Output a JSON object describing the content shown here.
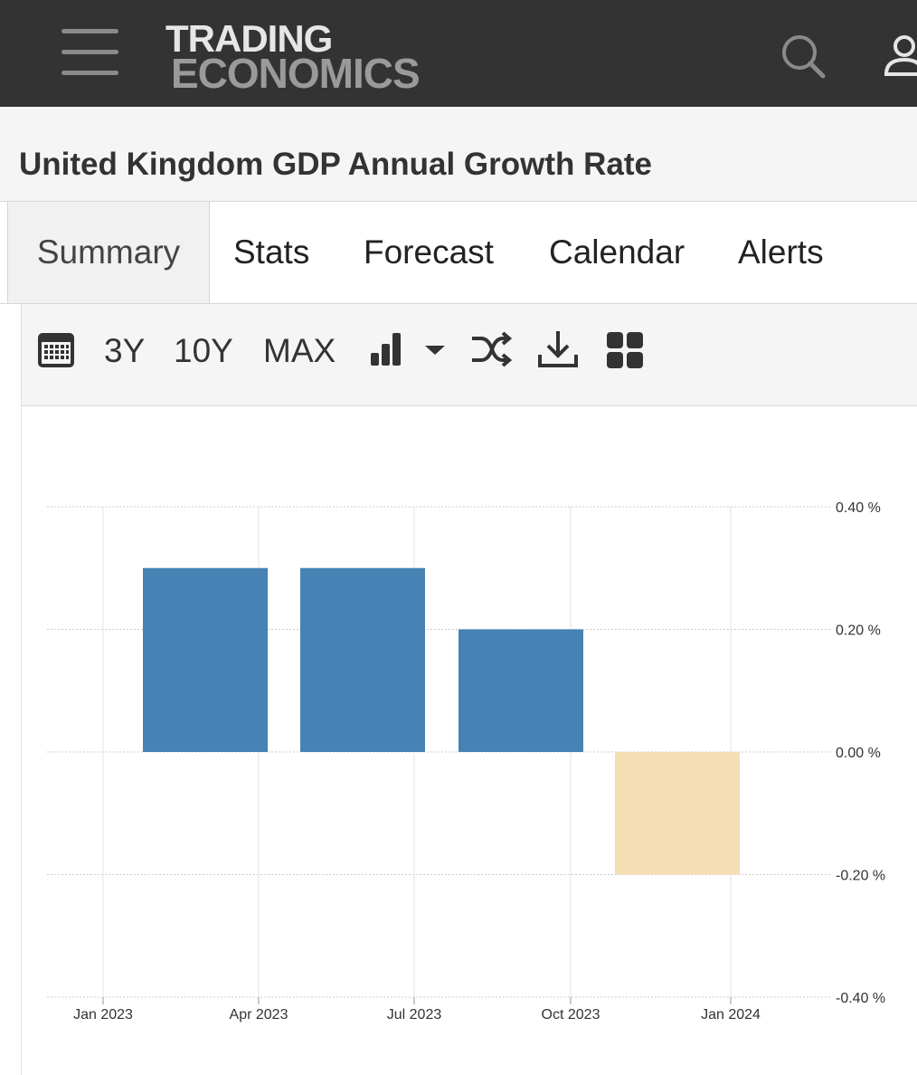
{
  "header": {
    "logo_line1": "TRADING",
    "logo_line2": "ECONOMICS",
    "menu_icon": "hamburger-menu-icon",
    "search_icon": "search-icon",
    "user_icon": "user-icon"
  },
  "page": {
    "title": "United Kingdom GDP Annual Growth Rate"
  },
  "tabs": [
    {
      "label": "Summary",
      "active": true
    },
    {
      "label": "Stats",
      "active": false
    },
    {
      "label": "Forecast",
      "active": false
    },
    {
      "label": "Calendar",
      "active": false
    },
    {
      "label": "Alerts",
      "active": false
    }
  ],
  "toolbar": {
    "calendar_icon": "calendar-icon",
    "range_3y": "3Y",
    "range_10y": "10Y",
    "range_max": "MAX",
    "chart_type_icon": "bar-chart-icon",
    "dropdown_icon": "caret-down-icon",
    "compare_icon": "shuffle-icon",
    "download_icon": "download-icon",
    "embed_icon": "grid-icon"
  },
  "chart_data": {
    "type": "bar",
    "title": "",
    "xlabel": "",
    "ylabel": "",
    "x_ticks": [
      "Jan 2023",
      "Apr 2023",
      "Jul 2023",
      "Oct 2023",
      "Jan 2024"
    ],
    "y_ticks": [
      "0.40 %",
      "0.20 %",
      "0.00 %",
      "-0.20 %",
      "-0.40 %"
    ],
    "ylim": [
      -0.4,
      0.4
    ],
    "categories": [
      "2023-Q1",
      "2023-Q2",
      "2023-Q3",
      "2023-Q4"
    ],
    "values": [
      0.3,
      0.3,
      0.2,
      -0.2
    ],
    "colors": {
      "positive": "#4682b4",
      "negative": "#f5deb3"
    },
    "grid": true,
    "y_axis_position": "right"
  }
}
